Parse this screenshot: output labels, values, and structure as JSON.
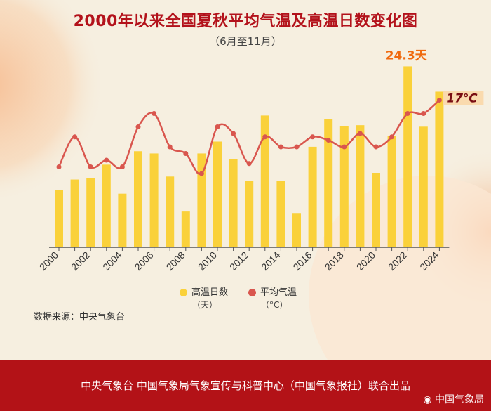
{
  "title": "2000年以来全国夏秋平均气温及高温日数变化图",
  "subtitle": "（6月至11月）",
  "source": "数据来源：中央气象台",
  "footer": "中央气象台 中国气象局气象宣传与科普中心（中国气象报社）联合出品",
  "watermark": "中国气象局",
  "colors": {
    "bar": "#fad13a",
    "line": "#d9564e",
    "title": "#b3121b",
    "footer": "#b31217",
    "highlight": "#f06a0f"
  },
  "legend": [
    {
      "name": "高温日数",
      "unit": "（天）"
    },
    {
      "name": "平均气温",
      "unit": "（°C）"
    }
  ],
  "annotations": {
    "max_days": "24.3天",
    "latest_temp": "17℃"
  },
  "chart_data": {
    "type": "bar+line",
    "categories": [
      2000,
      2001,
      2002,
      2003,
      2004,
      2005,
      2006,
      2007,
      2008,
      2009,
      2010,
      2011,
      2012,
      2013,
      2014,
      2015,
      2016,
      2017,
      2018,
      2019,
      2020,
      2021,
      2022,
      2023,
      2024
    ],
    "x_tick_labels": [
      "2000",
      "2002",
      "2004",
      "2006",
      "2008",
      "2010",
      "2012",
      "2014",
      "2016",
      "2018",
      "2020",
      "2022",
      "2024"
    ],
    "series": [
      {
        "name": "高温日数",
        "type": "bar",
        "values": [
          7.7,
          9.1,
          9.3,
          11.1,
          7.2,
          12.9,
          12.6,
          9.5,
          4.8,
          12.6,
          14.2,
          11.8,
          8.9,
          17.7,
          8.9,
          4.6,
          13.5,
          17.2,
          16.3,
          16.4,
          10.0,
          15.0,
          24.3,
          16.2,
          20.9
        ]
      },
      {
        "name": "平均气温",
        "type": "line",
        "values": [
          16.0,
          16.45,
          16.0,
          16.1,
          16.0,
          16.6,
          16.8,
          16.3,
          16.2,
          15.9,
          16.6,
          16.5,
          16.05,
          16.45,
          16.3,
          16.3,
          16.45,
          16.4,
          16.3,
          16.5,
          16.3,
          16.45,
          16.8,
          16.8,
          17.0
        ]
      }
    ]
  }
}
